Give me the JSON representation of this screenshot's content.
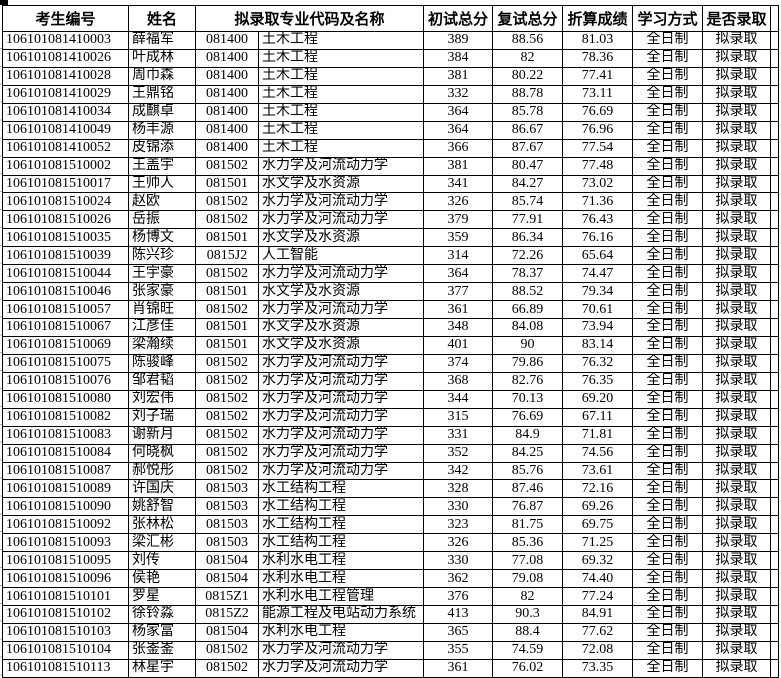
{
  "table": {
    "columns": {
      "candidate_id": "考生编号",
      "name": "姓名",
      "major_code_and_name": "拟录取专业代码及名称",
      "initial_score": "初试总分",
      "retest_score": "复试总分",
      "converted_score": "折算成绩",
      "study_mode": "学习方式",
      "admission": "是否录取"
    },
    "rows": [
      {
        "id": "106101081410003",
        "name": "薛福军",
        "major_code": "081400",
        "major_name": "土木工程",
        "initial_score": "389",
        "retest_score": "88.56",
        "converted_score": "81.03",
        "study_mode": "全日制",
        "admission": "拟录取"
      },
      {
        "id": "106101081410026",
        "name": "叶成林",
        "major_code": "081400",
        "major_name": "土木工程",
        "initial_score": "384",
        "retest_score": "82",
        "converted_score": "78.36",
        "study_mode": "全日制",
        "admission": "拟录取"
      },
      {
        "id": "106101081410028",
        "name": "周巾森",
        "major_code": "081400",
        "major_name": "土木工程",
        "initial_score": "381",
        "retest_score": "80.22",
        "converted_score": "77.41",
        "study_mode": "全日制",
        "admission": "拟录取"
      },
      {
        "id": "106101081410029",
        "name": "王鼎铭",
        "major_code": "081400",
        "major_name": "土木工程",
        "initial_score": "332",
        "retest_score": "88.78",
        "converted_score": "73.11",
        "study_mode": "全日制",
        "admission": "拟录取"
      },
      {
        "id": "106101081410034",
        "name": "成麒卓",
        "major_code": "081400",
        "major_name": "土木工程",
        "initial_score": "364",
        "retest_score": "85.78",
        "converted_score": "76.69",
        "study_mode": "全日制",
        "admission": "拟录取"
      },
      {
        "id": "106101081410049",
        "name": "杨丰源",
        "major_code": "081400",
        "major_name": "土木工程",
        "initial_score": "364",
        "retest_score": "86.67",
        "converted_score": "76.96",
        "study_mode": "全日制",
        "admission": "拟录取"
      },
      {
        "id": "106101081410052",
        "name": "皮锦添",
        "major_code": "081400",
        "major_name": "土木工程",
        "initial_score": "366",
        "retest_score": "87.67",
        "converted_score": "77.54",
        "study_mode": "全日制",
        "admission": "拟录取"
      },
      {
        "id": "106101081510002",
        "name": "王盖宇",
        "major_code": "081502",
        "major_name": "水力学及河流动力学",
        "initial_score": "381",
        "retest_score": "80.47",
        "converted_score": "77.48",
        "study_mode": "全日制",
        "admission": "拟录取"
      },
      {
        "id": "106101081510017",
        "name": "王帅人",
        "major_code": "081501",
        "major_name": "水文学及水资源",
        "initial_score": "341",
        "retest_score": "84.27",
        "converted_score": "73.02",
        "study_mode": "全日制",
        "admission": "拟录取"
      },
      {
        "id": "106101081510024",
        "name": "赵欧",
        "major_code": "081502",
        "major_name": "水力学及河流动力学",
        "initial_score": "326",
        "retest_score": "85.74",
        "converted_score": "71.36",
        "study_mode": "全日制",
        "admission": "拟录取"
      },
      {
        "id": "106101081510026",
        "name": "岳振",
        "major_code": "081502",
        "major_name": "水力学及河流动力学",
        "initial_score": "379",
        "retest_score": "77.91",
        "converted_score": "76.43",
        "study_mode": "全日制",
        "admission": "拟录取"
      },
      {
        "id": "106101081510035",
        "name": "杨博文",
        "major_code": "081501",
        "major_name": "水文学及水资源",
        "initial_score": "359",
        "retest_score": "86.34",
        "converted_score": "76.16",
        "study_mode": "全日制",
        "admission": "拟录取"
      },
      {
        "id": "106101081510039",
        "name": "陈兴珍",
        "major_code": "0815J2",
        "major_name": "人工智能",
        "initial_score": "314",
        "retest_score": "72.26",
        "converted_score": "65.64",
        "study_mode": "全日制",
        "admission": "拟录取"
      },
      {
        "id": "106101081510044",
        "name": "王宇豪",
        "major_code": "081502",
        "major_name": "水力学及河流动力学",
        "initial_score": "364",
        "retest_score": "78.37",
        "converted_score": "74.47",
        "study_mode": "全日制",
        "admission": "拟录取"
      },
      {
        "id": "106101081510046",
        "name": "张家豪",
        "major_code": "081501",
        "major_name": "水文学及水资源",
        "initial_score": "377",
        "retest_score": "88.52",
        "converted_score": "79.34",
        "study_mode": "全日制",
        "admission": "拟录取"
      },
      {
        "id": "106101081510057",
        "name": "肖锦旺",
        "major_code": "081502",
        "major_name": "水力学及河流动力学",
        "initial_score": "361",
        "retest_score": "66.89",
        "converted_score": "70.61",
        "study_mode": "全日制",
        "admission": "拟录取"
      },
      {
        "id": "106101081510067",
        "name": "江彦佳",
        "major_code": "081501",
        "major_name": "水文学及水资源",
        "initial_score": "348",
        "retest_score": "84.08",
        "converted_score": "73.94",
        "study_mode": "全日制",
        "admission": "拟录取"
      },
      {
        "id": "106101081510069",
        "name": "梁瀚续",
        "major_code": "081501",
        "major_name": "水文学及水资源",
        "initial_score": "401",
        "retest_score": "90",
        "converted_score": "83.14",
        "study_mode": "全日制",
        "admission": "拟录取"
      },
      {
        "id": "106101081510075",
        "name": "陈骏峰",
        "major_code": "081502",
        "major_name": "水力学及河流动力学",
        "initial_score": "374",
        "retest_score": "79.86",
        "converted_score": "76.32",
        "study_mode": "全日制",
        "admission": "拟录取"
      },
      {
        "id": "106101081510076",
        "name": "邹君韬",
        "major_code": "081502",
        "major_name": "水力学及河流动力学",
        "initial_score": "368",
        "retest_score": "82.76",
        "converted_score": "76.35",
        "study_mode": "全日制",
        "admission": "拟录取"
      },
      {
        "id": "106101081510080",
        "name": "刘宏伟",
        "major_code": "081502",
        "major_name": "水力学及河流动力学",
        "initial_score": "344",
        "retest_score": "70.13",
        "converted_score": "69.20",
        "study_mode": "全日制",
        "admission": "拟录取"
      },
      {
        "id": "106101081510082",
        "name": "刘子瑞",
        "major_code": "081502",
        "major_name": "水力学及河流动力学",
        "initial_score": "315",
        "retest_score": "76.69",
        "converted_score": "67.11",
        "study_mode": "全日制",
        "admission": "拟录取"
      },
      {
        "id": "106101081510083",
        "name": "谢新月",
        "major_code": "081502",
        "major_name": "水力学及河流动力学",
        "initial_score": "331",
        "retest_score": "84.9",
        "converted_score": "71.81",
        "study_mode": "全日制",
        "admission": "拟录取"
      },
      {
        "id": "106101081510084",
        "name": "何晓枫",
        "major_code": "081502",
        "major_name": "水力学及河流动力学",
        "initial_score": "352",
        "retest_score": "84.25",
        "converted_score": "74.56",
        "study_mode": "全日制",
        "admission": "拟录取"
      },
      {
        "id": "106101081510087",
        "name": "郝悦彤",
        "major_code": "081502",
        "major_name": "水力学及河流动力学",
        "initial_score": "342",
        "retest_score": "85.76",
        "converted_score": "73.61",
        "study_mode": "全日制",
        "admission": "拟录取"
      },
      {
        "id": "106101081510089",
        "name": "许国庆",
        "major_code": "081503",
        "major_name": "水工结构工程",
        "initial_score": "328",
        "retest_score": "87.46",
        "converted_score": "72.16",
        "study_mode": "全日制",
        "admission": "拟录取"
      },
      {
        "id": "106101081510090",
        "name": "姚舒智",
        "major_code": "081503",
        "major_name": "水工结构工程",
        "initial_score": "330",
        "retest_score": "76.87",
        "converted_score": "69.26",
        "study_mode": "全日制",
        "admission": "拟录取"
      },
      {
        "id": "106101081510092",
        "name": "张林松",
        "major_code": "081503",
        "major_name": "水工结构工程",
        "initial_score": "323",
        "retest_score": "81.75",
        "converted_score": "69.75",
        "study_mode": "全日制",
        "admission": "拟录取"
      },
      {
        "id": "106101081510093",
        "name": "梁汇彬",
        "major_code": "081503",
        "major_name": "水工结构工程",
        "initial_score": "326",
        "retest_score": "85.36",
        "converted_score": "71.25",
        "study_mode": "全日制",
        "admission": "拟录取"
      },
      {
        "id": "106101081510095",
        "name": "刘传",
        "major_code": "081504",
        "major_name": "水利水电工程",
        "initial_score": "330",
        "retest_score": "77.08",
        "converted_score": "69.32",
        "study_mode": "全日制",
        "admission": "拟录取"
      },
      {
        "id": "106101081510096",
        "name": "侯艳",
        "major_code": "081504",
        "major_name": "水利水电工程",
        "initial_score": "362",
        "retest_score": "79.08",
        "converted_score": "74.40",
        "study_mode": "全日制",
        "admission": "拟录取"
      },
      {
        "id": "106101081510101",
        "name": "罗星",
        "major_code": "0815Z1",
        "major_name": "水利水电工程管理",
        "initial_score": "376",
        "retest_score": "82",
        "converted_score": "77.24",
        "study_mode": "全日制",
        "admission": "拟录取"
      },
      {
        "id": "106101081510102",
        "name": "徐铃淼",
        "major_code": "0815Z2",
        "major_name": "能源工程及电站动力系统",
        "initial_score": "413",
        "retest_score": "90.3",
        "converted_score": "84.91",
        "study_mode": "全日制",
        "admission": "拟录取"
      },
      {
        "id": "106101081510103",
        "name": "杨家富",
        "major_code": "081504",
        "major_name": "水利水电工程",
        "initial_score": "365",
        "retest_score": "88.4",
        "converted_score": "77.62",
        "study_mode": "全日制",
        "admission": "拟录取"
      },
      {
        "id": "106101081510104",
        "name": "张崟崟",
        "major_code": "081502",
        "major_name": "水力学及河流动力学",
        "initial_score": "355",
        "retest_score": "74.59",
        "converted_score": "72.08",
        "study_mode": "全日制",
        "admission": "拟录取"
      },
      {
        "id": "106101081510113",
        "name": "林星宇",
        "major_code": "081502",
        "major_name": "水力学及河流动力学",
        "initial_score": "361",
        "retest_score": "76.02",
        "converted_score": "73.35",
        "study_mode": "全日制",
        "admission": "拟录取"
      }
    ]
  },
  "colors": {
    "border": "#000000",
    "text": "#000000",
    "background": "#ffffff",
    "gridline_artifact": "#9eb6ce"
  }
}
